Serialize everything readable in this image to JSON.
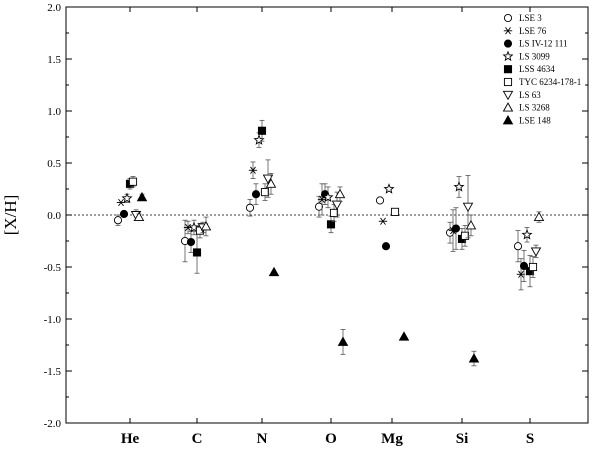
{
  "chart_data": {
    "type": "scatter",
    "title": "",
    "xlabel": "",
    "ylabel": "[X/H]",
    "ylim": [
      -2.0,
      2.0
    ],
    "yticks": [
      "2.0",
      "1.5",
      "1.0",
      "0.5",
      "0.0",
      "-0.5",
      "-1.0",
      "-1.5",
      "-2.0"
    ],
    "categories": [
      "He",
      "C",
      "N",
      "O",
      "Mg",
      "Si",
      "S"
    ],
    "reference_line": 0.0,
    "legend_position": "top-right",
    "series": [
      {
        "name": "LSE 3",
        "marker": "circle-open",
        "points": [
          {
            "cat": "He",
            "y": -0.05,
            "err": 0.05
          },
          {
            "cat": "C",
            "y": -0.25,
            "err": 0.2
          },
          {
            "cat": "N",
            "y": 0.07,
            "err": 0.08
          },
          {
            "cat": "O",
            "y": 0.08,
            "err": 0.1
          },
          {
            "cat": "Mg",
            "y": 0.14,
            "err": null
          },
          {
            "cat": "Si",
            "y": -0.17,
            "err": 0.1
          },
          {
            "cat": "S",
            "y": -0.3,
            "err": 0.15
          }
        ]
      },
      {
        "name": "LSE 76",
        "marker": "asterisk",
        "points": [
          {
            "cat": "He",
            "y": 0.12,
            "err": null
          },
          {
            "cat": "C",
            "y": -0.12,
            "err": 0.06
          },
          {
            "cat": "N",
            "y": 0.43,
            "err": 0.08
          },
          {
            "cat": "O",
            "y": 0.15,
            "err": 0.15
          },
          {
            "cat": "Mg",
            "y": -0.06,
            "err": null
          },
          {
            "cat": "Si",
            "y": -0.15,
            "err": 0.2
          },
          {
            "cat": "S",
            "y": -0.57,
            "err": 0.15
          }
        ]
      },
      {
        "name": "LS IV-12 111",
        "marker": "circle-filled",
        "points": [
          {
            "cat": "He",
            "y": 0.01,
            "err": null
          },
          {
            "cat": "C",
            "y": -0.26,
            "err": 0.1
          },
          {
            "cat": "N",
            "y": 0.2,
            "err": 0.1
          },
          {
            "cat": "O",
            "y": 0.2,
            "err": 0.1
          },
          {
            "cat": "Mg",
            "y": -0.3,
            "err": null
          },
          {
            "cat": "Si",
            "y": -0.13,
            "err": 0.2
          },
          {
            "cat": "S",
            "y": -0.49,
            "err": 0.15
          }
        ]
      },
      {
        "name": "LS 3099",
        "marker": "star-open",
        "points": [
          {
            "cat": "He",
            "y": 0.16,
            "err": 0.04
          },
          {
            "cat": "C",
            "y": -0.12,
            "err": 0.07
          },
          {
            "cat": "N",
            "y": 0.72,
            "err": 0.07
          },
          {
            "cat": "O",
            "y": 0.17,
            "err": 0.1
          },
          {
            "cat": "Mg",
            "y": 0.25,
            "err": null
          },
          {
            "cat": "Si",
            "y": 0.27,
            "err": 0.1
          },
          {
            "cat": "S",
            "y": -0.19,
            "err": 0.07
          }
        ]
      },
      {
        "name": "LSS 4634",
        "marker": "square-filled",
        "points": [
          {
            "cat": "He",
            "y": 0.3,
            "err": 0.05
          },
          {
            "cat": "C",
            "y": -0.36,
            "err": 0.2
          },
          {
            "cat": "N",
            "y": 0.81,
            "err": 0.1
          },
          {
            "cat": "O",
            "y": -0.09,
            "err": 0.08
          },
          {
            "cat": "Si",
            "y": -0.23,
            "err": 0.1
          },
          {
            "cat": "S",
            "y": -0.54,
            "err": 0.15
          }
        ]
      },
      {
        "name": "TYC 6234-178-1",
        "marker": "square-open",
        "points": [
          {
            "cat": "He",
            "y": 0.32,
            "err": 0.05
          },
          {
            "cat": "C",
            "y": -0.15,
            "err": 0.07
          },
          {
            "cat": "N",
            "y": 0.22,
            "err": 0.08
          },
          {
            "cat": "O",
            "y": 0.02,
            "err": 0.08
          },
          {
            "cat": "Mg",
            "y": 0.03,
            "err": null
          },
          {
            "cat": "Si",
            "y": -0.2,
            "err": 0.1
          },
          {
            "cat": "S",
            "y": -0.5,
            "err": 0.1
          }
        ]
      },
      {
        "name": "LS 63",
        "marker": "triangle-down-open",
        "points": [
          {
            "cat": "He",
            "y": 0.0,
            "err": 0.05
          },
          {
            "cat": "C",
            "y": -0.12,
            "err": 0.05
          },
          {
            "cat": "N",
            "y": 0.35,
            "err": 0.18
          },
          {
            "cat": "O",
            "y": 0.1,
            "err": 0.12
          },
          {
            "cat": "Si",
            "y": 0.08,
            "err": 0.3
          },
          {
            "cat": "S",
            "y": -0.35,
            "err": 0.06
          }
        ]
      },
      {
        "name": "LS 3268",
        "marker": "triangle-up-open",
        "points": [
          {
            "cat": "He",
            "y": -0.02,
            "err": 0.03
          },
          {
            "cat": "C",
            "y": -0.11,
            "err": 0.09
          },
          {
            "cat": "N",
            "y": 0.3,
            "err": 0.1
          },
          {
            "cat": "O",
            "y": 0.2,
            "err": 0.07
          },
          {
            "cat": "Si",
            "y": -0.1,
            "err": 0.1
          },
          {
            "cat": "S",
            "y": -0.02,
            "err": 0.05
          }
        ]
      },
      {
        "name": "LSE 148",
        "marker": "triangle-up-filled",
        "points": [
          {
            "cat": "He",
            "y": 0.17,
            "err": 0.03
          },
          {
            "cat": "N",
            "y": -0.55,
            "err": null
          },
          {
            "cat": "O",
            "y": -1.22,
            "err": 0.12
          },
          {
            "cat": "Mg",
            "y": -1.17,
            "err": null
          },
          {
            "cat": "Si",
            "y": -1.38,
            "err": 0.07
          }
        ]
      }
    ]
  }
}
